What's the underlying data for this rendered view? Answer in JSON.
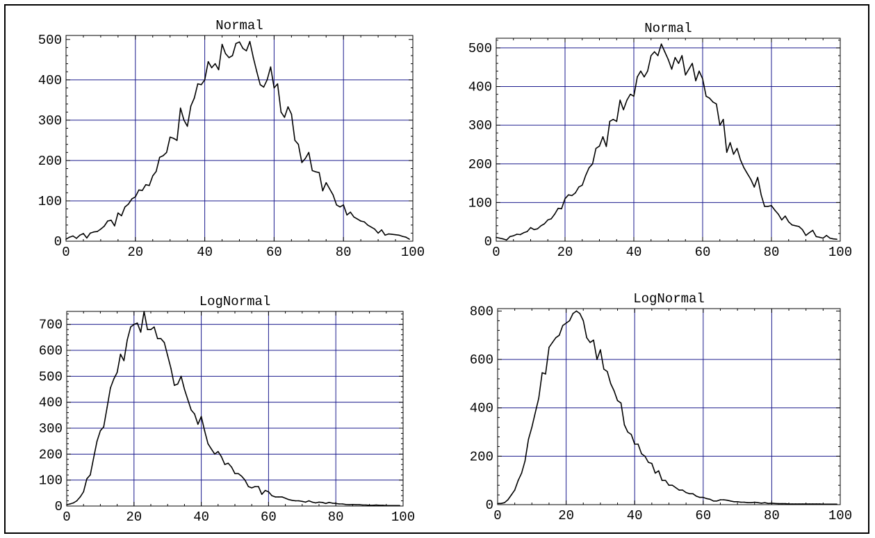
{
  "chart_data": [
    {
      "type": "line",
      "title": "Normal",
      "xlim": [
        0,
        100
      ],
      "ylim": [
        0,
        510
      ],
      "x_ticks": [
        0,
        20,
        40,
        60,
        80,
        100
      ],
      "y_ticks": [
        0,
        100,
        200,
        300,
        400,
        500
      ],
      "grid": true,
      "grid_x": [
        20,
        40,
        60,
        80
      ],
      "grid_y": [
        100,
        200,
        300,
        400
      ],
      "x": [
        0,
        1,
        2,
        3,
        4,
        5,
        6,
        7,
        8,
        9,
        10,
        11,
        12,
        13,
        14,
        15,
        16,
        17,
        18,
        19,
        20,
        21,
        22,
        23,
        24,
        25,
        26,
        27,
        28,
        29,
        30,
        31,
        32,
        33,
        34,
        35,
        36,
        37,
        38,
        39,
        40,
        41,
        42,
        43,
        44,
        45,
        46,
        47,
        48,
        49,
        50,
        51,
        52,
        53,
        54,
        55,
        56,
        57,
        58,
        59,
        60,
        61,
        62,
        63,
        64,
        65,
        66,
        67,
        68,
        69,
        70,
        71,
        72,
        73,
        74,
        75,
        76,
        77,
        78,
        79,
        80,
        81,
        82,
        83,
        84,
        85,
        86,
        87,
        88,
        89,
        90,
        91,
        92,
        93,
        94,
        95,
        96,
        97,
        98,
        99
      ],
      "y": [
        5,
        10,
        13,
        7,
        15,
        19,
        8,
        20,
        23,
        24,
        30,
        37,
        50,
        52,
        38,
        70,
        63,
        85,
        92,
        105,
        110,
        127,
        126,
        140,
        138,
        162,
        173,
        208,
        212,
        220,
        258,
        255,
        250,
        330,
        300,
        285,
        335,
        355,
        390,
        388,
        400,
        445,
        430,
        440,
        425,
        488,
        465,
        455,
        460,
        490,
        494,
        478,
        472,
        495,
        455,
        420,
        388,
        382,
        400,
        432,
        380,
        390,
        320,
        307,
        333,
        315,
        250,
        240,
        195,
        205,
        220,
        175,
        172,
        170,
        125,
        145,
        130,
        115,
        90,
        85,
        90,
        65,
        72,
        60,
        55,
        50,
        48,
        40,
        35,
        30,
        20,
        28,
        15,
        18,
        17,
        16,
        15,
        12,
        10,
        5
      ]
    },
    {
      "type": "line",
      "title": "Normal",
      "xlim": [
        0,
        100
      ],
      "ylim": [
        0,
        525
      ],
      "x_ticks": [
        0,
        20,
        40,
        60,
        80,
        100
      ],
      "y_ticks": [
        0,
        100,
        200,
        300,
        400,
        500
      ],
      "grid": true,
      "grid_x": [
        20,
        40,
        60,
        80
      ],
      "grid_y": [
        100,
        200,
        300,
        400,
        500
      ],
      "x": [
        0,
        1,
        2,
        3,
        4,
        5,
        6,
        7,
        8,
        9,
        10,
        11,
        12,
        13,
        14,
        15,
        16,
        17,
        18,
        19,
        20,
        21,
        22,
        23,
        24,
        25,
        26,
        27,
        28,
        29,
        30,
        31,
        32,
        33,
        34,
        35,
        36,
        37,
        38,
        39,
        40,
        41,
        42,
        43,
        44,
        45,
        46,
        47,
        48,
        49,
        50,
        51,
        52,
        53,
        54,
        55,
        56,
        57,
        58,
        59,
        60,
        61,
        62,
        63,
        64,
        65,
        66,
        67,
        68,
        69,
        70,
        71,
        72,
        73,
        74,
        75,
        76,
        77,
        78,
        79,
        80,
        81,
        82,
        83,
        84,
        85,
        86,
        87,
        88,
        89,
        90,
        91,
        92,
        93,
        94,
        95,
        96,
        97,
        98,
        99
      ],
      "y": [
        10,
        8,
        6,
        3,
        12,
        14,
        18,
        17,
        22,
        25,
        35,
        30,
        32,
        40,
        45,
        55,
        58,
        70,
        85,
        84,
        110,
        120,
        118,
        125,
        140,
        145,
        170,
        190,
        200,
        240,
        246,
        270,
        245,
        310,
        315,
        310,
        365,
        340,
        365,
        380,
        375,
        425,
        440,
        425,
        440,
        480,
        490,
        480,
        510,
        490,
        470,
        445,
        475,
        460,
        480,
        430,
        445,
        460,
        415,
        440,
        420,
        375,
        370,
        360,
        355,
        300,
        315,
        230,
        255,
        225,
        240,
        210,
        190,
        175,
        160,
        140,
        165,
        120,
        90,
        90,
        92,
        80,
        70,
        55,
        65,
        50,
        42,
        40,
        38,
        30,
        15,
        22,
        28,
        12,
        10,
        8,
        15,
        8,
        6,
        5
      ]
    },
    {
      "type": "line",
      "title": "LogNormal",
      "xlim": [
        0,
        100
      ],
      "ylim": [
        0,
        750
      ],
      "x_ticks": [
        0,
        20,
        40,
        60,
        80,
        100
      ],
      "y_ticks": [
        0,
        100,
        200,
        300,
        400,
        500,
        600,
        700
      ],
      "grid": true,
      "grid_x": [
        20,
        40,
        60,
        80
      ],
      "grid_y": [
        100,
        200,
        300,
        400,
        500,
        600,
        700
      ],
      "x": [
        0,
        1,
        2,
        3,
        4,
        5,
        6,
        7,
        8,
        9,
        10,
        11,
        12,
        13,
        14,
        15,
        16,
        17,
        18,
        19,
        20,
        21,
        22,
        23,
        24,
        25,
        26,
        27,
        28,
        29,
        30,
        31,
        32,
        33,
        34,
        35,
        36,
        37,
        38,
        39,
        40,
        41,
        42,
        43,
        44,
        45,
        46,
        47,
        48,
        49,
        50,
        51,
        52,
        53,
        54,
        55,
        56,
        57,
        58,
        59,
        60,
        61,
        62,
        63,
        64,
        65,
        66,
        67,
        68,
        69,
        70,
        71,
        72,
        73,
        74,
        75,
        76,
        77,
        78,
        79,
        80,
        81,
        82,
        83,
        84,
        85,
        86,
        87,
        88,
        89,
        90,
        91,
        92,
        93,
        94,
        95,
        96,
        97,
        98,
        99
      ],
      "y": [
        5,
        8,
        12,
        20,
        35,
        55,
        105,
        120,
        185,
        250,
        290,
        305,
        380,
        455,
        490,
        515,
        585,
        560,
        640,
        690,
        700,
        705,
        670,
        750,
        680,
        680,
        690,
        645,
        645,
        630,
        580,
        530,
        465,
        470,
        500,
        450,
        410,
        370,
        355,
        315,
        345,
        290,
        240,
        220,
        200,
        210,
        190,
        160,
        165,
        150,
        125,
        125,
        115,
        100,
        75,
        70,
        75,
        75,
        45,
        60,
        55,
        40,
        35,
        35,
        35,
        30,
        25,
        22,
        20,
        20,
        18,
        15,
        20,
        15,
        12,
        15,
        14,
        10,
        14,
        11,
        10,
        8,
        8,
        6,
        5,
        6,
        5,
        5,
        4,
        4,
        3,
        3,
        4,
        3,
        3,
        2,
        2,
        2,
        2,
        2
      ]
    },
    {
      "type": "line",
      "title": "LogNormal",
      "xlim": [
        0,
        100
      ],
      "ylim": [
        0,
        810
      ],
      "x_ticks": [
        0,
        20,
        40,
        60,
        80,
        100
      ],
      "y_ticks": [
        0,
        200,
        400,
        600,
        800
      ],
      "grid": true,
      "grid_x": [
        20,
        40,
        60,
        80
      ],
      "grid_y": [
        200,
        400,
        600
      ],
      "x": [
        0,
        1,
        2,
        3,
        4,
        5,
        6,
        7,
        8,
        9,
        10,
        11,
        12,
        13,
        14,
        15,
        16,
        17,
        18,
        19,
        20,
        21,
        22,
        23,
        24,
        25,
        26,
        27,
        28,
        29,
        30,
        31,
        32,
        33,
        34,
        35,
        36,
        37,
        38,
        39,
        40,
        41,
        42,
        43,
        44,
        45,
        46,
        47,
        48,
        49,
        50,
        51,
        52,
        53,
        54,
        55,
        56,
        57,
        58,
        59,
        60,
        61,
        62,
        63,
        64,
        65,
        66,
        67,
        68,
        69,
        70,
        71,
        72,
        73,
        74,
        75,
        76,
        77,
        78,
        79,
        80,
        81,
        82,
        83,
        84,
        85,
        86,
        87,
        88,
        89,
        90,
        91,
        92,
        93,
        94,
        95,
        96,
        97,
        98,
        99
      ],
      "y": [
        5,
        5,
        8,
        20,
        40,
        60,
        100,
        130,
        180,
        270,
        320,
        380,
        440,
        545,
        540,
        650,
        670,
        690,
        700,
        740,
        750,
        760,
        790,
        800,
        790,
        760,
        690,
        670,
        680,
        600,
        640,
        560,
        550,
        500,
        470,
        430,
        420,
        330,
        300,
        290,
        250,
        250,
        210,
        200,
        175,
        170,
        130,
        140,
        100,
        100,
        80,
        80,
        70,
        60,
        60,
        50,
        45,
        45,
        35,
        30,
        30,
        25,
        22,
        15,
        15,
        20,
        20,
        18,
        15,
        12,
        12,
        10,
        10,
        8,
        8,
        10,
        8,
        6,
        8,
        5,
        6,
        5,
        4,
        4,
        4,
        3,
        3,
        3,
        3,
        3,
        3,
        3,
        3,
        3,
        3,
        2,
        2,
        2,
        2,
        2
      ]
    }
  ]
}
